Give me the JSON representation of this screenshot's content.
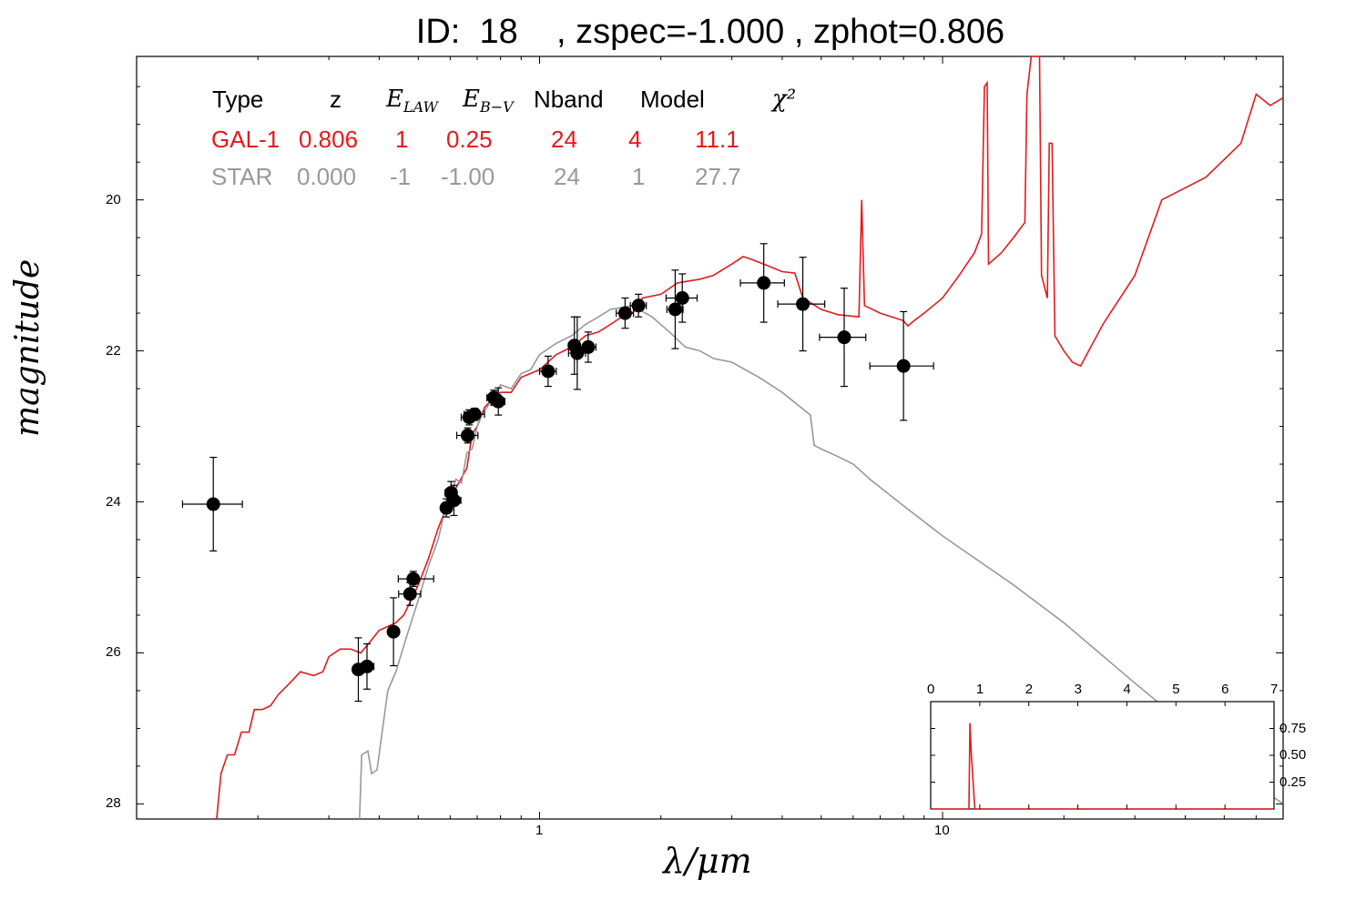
{
  "title": "ID:  18    , zspec=-1.000 , zphot=0.806",
  "colors": {
    "galaxy": "#e41a1c",
    "star": "#999999",
    "points": "#000000"
  },
  "chart_data": {
    "type": "scatter",
    "xlabel": "λ/μm",
    "ylabel": "magnitude",
    "x_scale": "log",
    "y_inverted": true,
    "xlim": [
      0.1,
      70
    ],
    "ylim": [
      28.2,
      18.1
    ],
    "x_ticks": [
      {
        "value": 1,
        "label": "1"
      },
      {
        "value": 10,
        "label": "10"
      }
    ],
    "y_ticks": [
      {
        "value": 20,
        "label": "20"
      },
      {
        "value": 22,
        "label": "22"
      },
      {
        "value": 24,
        "label": "24"
      },
      {
        "value": 26,
        "label": "26"
      },
      {
        "value": 28,
        "label": "28"
      }
    ],
    "table": {
      "headers": [
        "Type",
        "z",
        "E_LAW",
        "E_B-V",
        "Nband",
        "Model",
        "χ²"
      ],
      "rows": [
        {
          "name": "GAL-1",
          "cells": [
            "GAL-1",
            "0.806",
            "1",
            "0.25",
            "24",
            "4",
            "11.1"
          ]
        },
        {
          "name": "STAR",
          "cells": [
            "STAR",
            "0.000",
            "-1",
            "-1.00",
            "24",
            "1",
            "27.7"
          ]
        }
      ]
    },
    "photometry": [
      {
        "x": 0.155,
        "y": 24.03,
        "xerr": [
          0.025,
          0.028
        ],
        "yerr": 0.62
      },
      {
        "x": 0.355,
        "y": 26.22,
        "xerr": [
          0.008,
          0.008
        ],
        "yerr": 0.42
      },
      {
        "x": 0.373,
        "y": 26.18,
        "xerr": [
          0.012,
          0.015
        ],
        "yerr": 0.3
      },
      {
        "x": 0.434,
        "y": 25.72,
        "xerr": [
          0.012,
          0.012
        ],
        "yerr": 0.45
      },
      {
        "x": 0.477,
        "y": 25.22,
        "xerr": [
          0.03,
          0.03
        ],
        "yerr": 0.15
      },
      {
        "x": 0.486,
        "y": 25.02,
        "xerr": [
          0.04,
          0.06
        ],
        "yerr": 0.1
      },
      {
        "x": 0.587,
        "y": 24.08,
        "xerr": [
          0.015,
          0.015
        ],
        "yerr": 0.12
      },
      {
        "x": 0.603,
        "y": 23.88,
        "xerr": [
          0.02,
          0.02
        ],
        "yerr": 0.15
      },
      {
        "x": 0.613,
        "y": 23.98,
        "xerr": [
          0.02,
          0.025
        ],
        "yerr": 0.2
      },
      {
        "x": 0.663,
        "y": 23.12,
        "xerr": [
          0.04,
          0.04
        ],
        "yerr": 0.1
      },
      {
        "x": 0.669,
        "y": 22.88,
        "xerr": [
          0.03,
          0.03
        ],
        "yerr": 0.1
      },
      {
        "x": 0.69,
        "y": 22.84,
        "xerr": [
          0.04,
          0.04
        ],
        "yerr": 0.08
      },
      {
        "x": 0.77,
        "y": 22.62,
        "xerr": [
          0.03,
          0.03
        ],
        "yerr": 0.1
      },
      {
        "x": 0.79,
        "y": 22.67,
        "xerr": [
          0.03,
          0.03
        ],
        "yerr": 0.18
      },
      {
        "x": 1.05,
        "y": 22.27,
        "xerr": [
          0.05,
          0.05
        ],
        "yerr": 0.2
      },
      {
        "x": 1.22,
        "y": 21.93,
        "xerr": [
          0.04,
          0.04
        ],
        "yerr": 0.38
      },
      {
        "x": 1.24,
        "y": 22.03,
        "xerr": [
          0.06,
          0.06
        ],
        "yerr": 0.48
      },
      {
        "x": 1.32,
        "y": 21.95,
        "xerr": [
          0.06,
          0.06
        ],
        "yerr": 0.2
      },
      {
        "x": 1.63,
        "y": 21.5,
        "xerr": [
          0.08,
          0.08
        ],
        "yerr": 0.2
      },
      {
        "x": 1.76,
        "y": 21.4,
        "xerr": [
          0.08,
          0.08
        ],
        "yerr": 0.15
      },
      {
        "x": 2.17,
        "y": 21.45,
        "xerr": [
          0.1,
          0.1
        ],
        "yerr": 0.52
      },
      {
        "x": 2.26,
        "y": 21.3,
        "xerr": [
          0.2,
          0.2
        ],
        "yerr": 0.32
      },
      {
        "x": 3.6,
        "y": 21.1,
        "xerr": [
          0.45,
          0.45
        ],
        "yerr": 0.52
      },
      {
        "x": 4.5,
        "y": 21.38,
        "xerr": [
          0.6,
          0.6
        ],
        "yerr": 0.62
      },
      {
        "x": 5.7,
        "y": 21.82,
        "xerr": [
          0.75,
          0.75
        ],
        "yerr": 0.65
      },
      {
        "x": 8.0,
        "y": 22.2,
        "xerr": [
          1.4,
          1.5
        ],
        "yerr": 0.72
      }
    ],
    "galaxy_sed": [
      [
        0.158,
        28.2
      ],
      [
        0.162,
        27.6
      ],
      [
        0.168,
        27.35
      ],
      [
        0.175,
        27.35
      ],
      [
        0.182,
        27.05
      ],
      [
        0.19,
        27.05
      ],
      [
        0.196,
        26.75
      ],
      [
        0.205,
        26.75
      ],
      [
        0.215,
        26.7
      ],
      [
        0.225,
        26.55
      ],
      [
        0.24,
        26.4
      ],
      [
        0.255,
        26.25
      ],
      [
        0.275,
        26.3
      ],
      [
        0.29,
        26.25
      ],
      [
        0.3,
        26.05
      ],
      [
        0.32,
        25.95
      ],
      [
        0.34,
        25.95
      ],
      [
        0.36,
        26.0
      ],
      [
        0.38,
        25.85
      ],
      [
        0.4,
        25.7
      ],
      [
        0.42,
        25.65
      ],
      [
        0.44,
        25.6
      ],
      [
        0.46,
        25.5
      ],
      [
        0.48,
        25.3
      ],
      [
        0.5,
        25.1
      ],
      [
        0.53,
        24.75
      ],
      [
        0.56,
        24.35
      ],
      [
        0.6,
        23.95
      ],
      [
        0.63,
        23.75
      ],
      [
        0.66,
        23.55
      ],
      [
        0.68,
        23.1
      ],
      [
        0.7,
        23.0
      ],
      [
        0.73,
        22.75
      ],
      [
        0.76,
        22.65
      ],
      [
        0.8,
        22.55
      ],
      [
        0.85,
        22.55
      ],
      [
        0.9,
        22.35
      ],
      [
        1.0,
        22.25
      ],
      [
        1.1,
        22.05
      ],
      [
        1.2,
        21.95
      ],
      [
        1.3,
        21.8
      ],
      [
        1.4,
        21.75
      ],
      [
        1.5,
        21.65
      ],
      [
        1.6,
        21.55
      ],
      [
        1.7,
        21.5
      ],
      [
        1.8,
        21.3
      ],
      [
        2.0,
        21.25
      ],
      [
        2.2,
        21.1
      ],
      [
        2.5,
        21.05
      ],
      [
        2.7,
        21.0
      ],
      [
        3.0,
        20.85
      ],
      [
        3.2,
        20.75
      ],
      [
        3.4,
        20.8
      ],
      [
        3.6,
        20.85
      ],
      [
        4.0,
        20.95
      ],
      [
        4.3,
        20.97
      ],
      [
        4.5,
        21.3
      ],
      [
        5.0,
        21.45
      ],
      [
        5.5,
        21.52
      ],
      [
        6.2,
        21.55
      ],
      [
        6.3,
        20.0
      ],
      [
        6.4,
        21.4
      ],
      [
        7.0,
        21.5
      ],
      [
        8.0,
        21.6
      ],
      [
        8.2,
        21.67
      ],
      [
        8.5,
        21.6
      ],
      [
        9.0,
        21.5
      ],
      [
        10.0,
        21.3
      ],
      [
        11.0,
        21.0
      ],
      [
        12.0,
        20.7
      ],
      [
        12.5,
        20.45
      ],
      [
        12.7,
        18.5
      ],
      [
        12.9,
        18.45
      ],
      [
        13.0,
        20.85
      ],
      [
        14.0,
        20.7
      ],
      [
        15.0,
        20.5
      ],
      [
        16.0,
        20.3
      ],
      [
        16.2,
        18.6
      ],
      [
        16.6,
        18.1
      ],
      [
        17.4,
        18.05
      ],
      [
        17.6,
        21.0
      ],
      [
        18.2,
        21.3
      ],
      [
        18.4,
        19.25
      ],
      [
        18.7,
        19.25
      ],
      [
        19.0,
        21.8
      ],
      [
        20.0,
        22.0
      ],
      [
        21.0,
        22.15
      ],
      [
        22.0,
        22.2
      ],
      [
        25.0,
        21.65
      ],
      [
        30.0,
        21.0
      ],
      [
        35.0,
        20.0
      ],
      [
        45.0,
        19.7
      ],
      [
        55.0,
        19.25
      ],
      [
        60.0,
        18.6
      ],
      [
        65.0,
        18.75
      ],
      [
        70.0,
        18.65
      ]
    ],
    "star_sed": [
      [
        0.3575,
        28.2
      ],
      [
        0.362,
        27.35
      ],
      [
        0.375,
        27.3
      ],
      [
        0.383,
        27.6
      ],
      [
        0.395,
        27.55
      ],
      [
        0.42,
        26.5
      ],
      [
        0.44,
        26.25
      ],
      [
        0.47,
        25.75
      ],
      [
        0.5,
        25.3
      ],
      [
        0.53,
        24.85
      ],
      [
        0.56,
        24.5
      ],
      [
        0.58,
        24.15
      ],
      [
        0.6,
        23.95
      ],
      [
        0.62,
        23.7
      ],
      [
        0.64,
        23.75
      ],
      [
        0.66,
        23.35
      ],
      [
        0.68,
        23.3
      ],
      [
        0.7,
        23.0
      ],
      [
        0.72,
        22.85
      ],
      [
        0.75,
        22.7
      ],
      [
        0.78,
        22.55
      ],
      [
        0.8,
        22.45
      ],
      [
        0.85,
        22.5
      ],
      [
        0.9,
        22.3
      ],
      [
        0.95,
        22.25
      ],
      [
        1.0,
        22.05
      ],
      [
        1.1,
        21.9
      ],
      [
        1.2,
        21.8
      ],
      [
        1.3,
        21.65
      ],
      [
        1.4,
        21.55
      ],
      [
        1.5,
        21.45
      ],
      [
        1.7,
        21.4
      ],
      [
        1.9,
        21.55
      ],
      [
        2.1,
        21.75
      ],
      [
        2.3,
        21.95
      ],
      [
        2.5,
        22.0
      ],
      [
        2.7,
        22.1
      ],
      [
        3.0,
        22.15
      ],
      [
        3.5,
        22.35
      ],
      [
        4.0,
        22.55
      ],
      [
        4.7,
        22.85
      ],
      [
        4.8,
        23.25
      ],
      [
        5.0,
        23.3
      ],
      [
        5.5,
        23.4
      ],
      [
        6.0,
        23.5
      ],
      [
        6.6,
        23.7
      ],
      [
        8.0,
        24.05
      ],
      [
        10.0,
        24.45
      ],
      [
        15.0,
        25.1
      ],
      [
        20.0,
        25.6
      ],
      [
        30.0,
        26.4
      ],
      [
        40.0,
        26.95
      ],
      [
        50.0,
        27.4
      ],
      [
        60.0,
        27.75
      ],
      [
        70.0,
        28.0
      ]
    ],
    "inset": {
      "xlim": [
        0,
        7
      ],
      "ylim": [
        0,
        1.0
      ],
      "x_ticks": [
        0,
        1,
        2,
        3,
        4,
        5,
        6,
        7
      ],
      "y_ticks": [
        0.25,
        0.5,
        0.75
      ],
      "y_tick_labels": [
        "0.25",
        "0.50",
        "0.75"
      ],
      "pdz": [
        [
          0,
          0
        ],
        [
          0.78,
          0
        ],
        [
          0.8,
          0.8
        ],
        [
          0.83,
          0.5
        ],
        [
          0.9,
          0
        ],
        [
          7,
          0
        ]
      ]
    }
  }
}
